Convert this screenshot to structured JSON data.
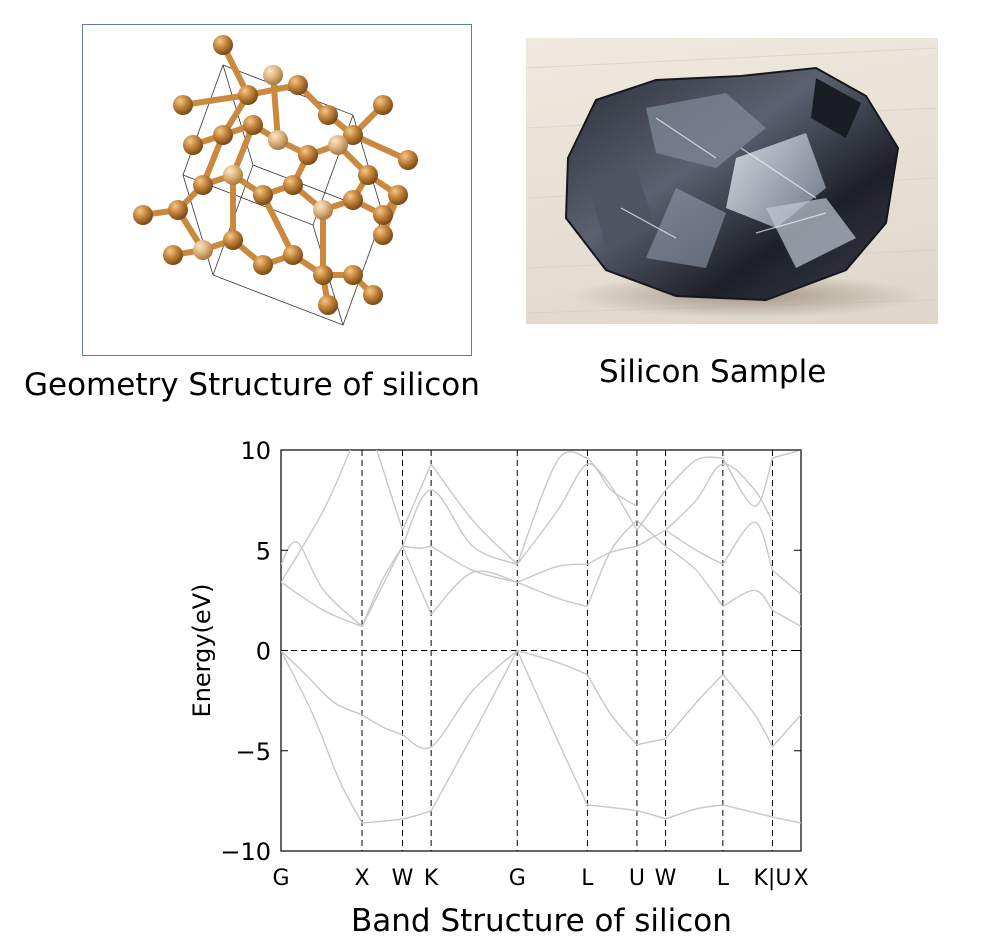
{
  "captions": {
    "structure": "Geometry Structure of silicon",
    "sample": "Silicon Sample",
    "band": "Band Structure of silicon"
  },
  "colors": {
    "atom": "#c9893f",
    "atom_light": "#dfb57e",
    "band_line": "#c8c8c8",
    "frame": "#5a7fa8"
  },
  "chart_data": {
    "type": "line",
    "title": "Band Structure of silicon",
    "xlabel": "",
    "ylabel": "Energy(eV)",
    "ylim": [
      -10,
      10
    ],
    "yticks": [
      10,
      5,
      0,
      -5,
      -10
    ],
    "ytick_labels": [
      "10",
      "5",
      "0",
      "−5",
      "−10"
    ],
    "grid": false,
    "legend": "none",
    "kpoints": [
      "G",
      "X",
      "W",
      "K",
      "G",
      "L",
      "U",
      "W",
      "L",
      "K|U",
      "X"
    ],
    "kpoint_positions": [
      0,
      0.761,
      1.141,
      1.41,
      2.219,
      2.878,
      3.343,
      3.612,
      4.15,
      4.616,
      4.884
    ],
    "reference_line": 0,
    "series": [
      {
        "x": [
          0,
          0.25,
          0.5,
          0.761
        ],
        "y": [
          0,
          -1.3,
          -2.6,
          -3.2
        ]
      },
      {
        "x": [
          0.761,
          0.95,
          1.141
        ],
        "y": [
          -3.2,
          -3.8,
          -4.2
        ]
      },
      {
        "x": [
          1.141,
          1.41,
          1.8,
          2.219
        ],
        "y": [
          -4.2,
          -4.8,
          -2.0,
          0
        ]
      },
      {
        "x": [
          2.219,
          2.6,
          2.878
        ],
        "y": [
          0,
          -0.6,
          -1.2
        ]
      },
      {
        "x": [
          2.878,
          3.1,
          3.343
        ],
        "y": [
          -1.2,
          -3.2,
          -4.7
        ]
      },
      {
        "x": [
          3.343,
          3.612
        ],
        "y": [
          -4.7,
          -4.4
        ]
      },
      {
        "x": [
          3.612,
          3.9,
          4.15
        ],
        "y": [
          -4.4,
          -2.6,
          -1.2
        ]
      },
      {
        "x": [
          4.15,
          4.45,
          4.616
        ],
        "y": [
          -1.2,
          -3.2,
          -4.8
        ]
      },
      {
        "x": [
          4.616,
          4.884
        ],
        "y": [
          -4.8,
          -3.2
        ]
      },
      {
        "x": [
          0,
          0.3,
          0.55,
          0.761
        ],
        "y": [
          0,
          -3.2,
          -6.5,
          -8.6
        ]
      },
      {
        "x": [
          0.761,
          1.141,
          1.41
        ],
        "y": [
          -8.6,
          -8.4,
          -8.0
        ]
      },
      {
        "x": [
          1.41,
          1.8,
          2.219
        ],
        "y": [
          -8.0,
          -4.2,
          0
        ]
      },
      {
        "x": [
          2.219,
          2.6,
          2.878
        ],
        "y": [
          0,
          -4.5,
          -7.7
        ]
      },
      {
        "x": [
          2.878,
          3.343,
          3.612
        ],
        "y": [
          -7.7,
          -8.0,
          -8.4
        ]
      },
      {
        "x": [
          3.612,
          3.9,
          4.15
        ],
        "y": [
          -8.4,
          -7.9,
          -7.7
        ]
      },
      {
        "x": [
          4.15,
          4.616,
          4.884
        ],
        "y": [
          -7.7,
          -8.3,
          -8.6
        ]
      },
      {
        "x": [
          0,
          0.4,
          0.761
        ],
        "y": [
          3.4,
          2.0,
          1.2
        ]
      },
      {
        "x": [
          0.761,
          0.95,
          1.141
        ],
        "y": [
          1.2,
          3.5,
          5.2
        ]
      },
      {
        "x": [
          1.141,
          1.41
        ],
        "y": [
          5.2,
          1.8
        ]
      },
      {
        "x": [
          1.41,
          1.8,
          2.219
        ],
        "y": [
          1.8,
          3.9,
          3.4
        ]
      },
      {
        "x": [
          2.219,
          2.6,
          2.878
        ],
        "y": [
          3.4,
          2.6,
          2.2
        ]
      },
      {
        "x": [
          2.878,
          3.1,
          3.343
        ],
        "y": [
          2.2,
          5.0,
          6.5
        ]
      },
      {
        "x": [
          3.343,
          3.612
        ],
        "y": [
          6.5,
          5.2
        ]
      },
      {
        "x": [
          3.612,
          3.9,
          4.15
        ],
        "y": [
          5.2,
          4.0,
          2.2
        ]
      },
      {
        "x": [
          4.15,
          4.45,
          4.616
        ],
        "y": [
          2.2,
          3.0,
          2.0
        ]
      },
      {
        "x": [
          4.616,
          4.884
        ],
        "y": [
          2.0,
          1.2
        ]
      },
      {
        "x": [
          0,
          0.15,
          0.4,
          0.761
        ],
        "y": [
          4.3,
          5.4,
          3.0,
          1.2
        ]
      },
      {
        "x": [
          0.761,
          0.95,
          1.141
        ],
        "y": [
          1.2,
          3.2,
          5.2
        ]
      },
      {
        "x": [
          1.141,
          1.3,
          1.41
        ],
        "y": [
          5.2,
          5.1,
          5.2
        ]
      },
      {
        "x": [
          1.41,
          1.8,
          2.219
        ],
        "y": [
          5.2,
          4.0,
          3.4
        ]
      },
      {
        "x": [
          2.219,
          2.6,
          2.878
        ],
        "y": [
          3.4,
          4.2,
          4.3
        ]
      },
      {
        "x": [
          2.878,
          3.1,
          3.343
        ],
        "y": [
          4.3,
          4.9,
          5.2
        ]
      },
      {
        "x": [
          3.343,
          3.612
        ],
        "y": [
          5.2,
          6.0
        ]
      },
      {
        "x": [
          3.612,
          3.9,
          4.15
        ],
        "y": [
          6.0,
          5.0,
          4.3
        ]
      },
      {
        "x": [
          4.15,
          4.45,
          4.616
        ],
        "y": [
          4.3,
          6.4,
          4.0
        ]
      },
      {
        "x": [
          4.616,
          4.884
        ],
        "y": [
          4.0,
          2.8
        ]
      },
      {
        "x": [
          0,
          0.4,
          0.65
        ],
        "y": [
          3.4,
          7.0,
          10.0
        ]
      },
      {
        "x": [
          0.9,
          1.141
        ],
        "y": [
          10.0,
          6.0
        ]
      },
      {
        "x": [
          1.141,
          1.41
        ],
        "y": [
          6.0,
          9.3
        ]
      },
      {
        "x": [
          1.41,
          1.8,
          2.219
        ],
        "y": [
          9.3,
          6.5,
          4.3
        ]
      },
      {
        "x": [
          2.219,
          2.6,
          2.878
        ],
        "y": [
          4.3,
          9.5,
          9.6
        ]
      },
      {
        "x": [
          2.878,
          3.1,
          3.343
        ],
        "y": [
          9.6,
          8.2,
          6.0
        ]
      },
      {
        "x": [
          3.343,
          3.612
        ],
        "y": [
          6.0,
          8.0
        ]
      },
      {
        "x": [
          3.612,
          3.9,
          4.15
        ],
        "y": [
          8.0,
          9.5,
          9.6
        ]
      },
      {
        "x": [
          4.15,
          4.45,
          4.616
        ],
        "y": [
          9.6,
          7.2,
          9.6
        ]
      },
      {
        "x": [
          4.616,
          4.884
        ],
        "y": [
          9.6,
          10.0
        ]
      },
      {
        "x": [
          1.141,
          1.41,
          1.8,
          2.219
        ],
        "y": [
          5.2,
          8.0,
          5.2,
          4.3
        ]
      },
      {
        "x": [
          2.219,
          2.6,
          2.878,
          3.1,
          3.343
        ],
        "y": [
          4.3,
          7.0,
          9.3,
          8.0,
          7.2
        ]
      },
      {
        "x": [
          3.612,
          3.9,
          4.15,
          4.45,
          4.616
        ],
        "y": [
          6.0,
          7.5,
          9.3,
          8.0,
          6.4
        ]
      }
    ]
  }
}
